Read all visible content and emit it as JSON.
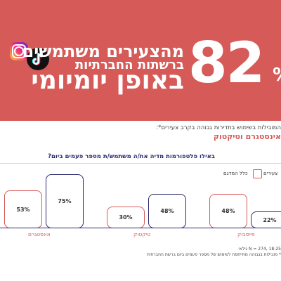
{
  "banner": {
    "big_number": "82",
    "percent_sign": "%",
    "line1": "מהצעירים משתמשים",
    "line2": "ברשתות החברתיות",
    "line3": "באופן יומיומי",
    "background_color": "#d65a57",
    "icons": [
      "instagram-icon",
      "tiktok-icon"
    ]
  },
  "intro": {
    "note": "המובילות בשימוש בתדירות גבוהה בקרב צעירים*:",
    "highlight": "אינסטגרם וטיקטוק"
  },
  "chart_data": {
    "type": "bar",
    "title": "באילו פלטפורמות מדיה את/ה משתמש/ת מספר פעמים ביום?",
    "categories": [
      "אינסטגרם",
      "טיקטוק",
      "פייסבוק"
    ],
    "series": [
      {
        "name": "כלל המדגם",
        "values": [
          53,
          30,
          48
        ],
        "color": "#d65a57"
      },
      {
        "name": "צעירים",
        "values": [
          75,
          48,
          22
        ],
        "color": "#2a2a6e"
      }
    ],
    "ylim": [
      0,
      100
    ],
    "value_suffix": "%",
    "legend_position": "top-right",
    "grid": false
  },
  "footnotes": {
    "sample": "N = 274, 18-25 גילאי",
    "note": "* מובילות בגבוהה מתייחסת לשימוש של מספר פעמים ביום ברשת החברתית"
  }
}
